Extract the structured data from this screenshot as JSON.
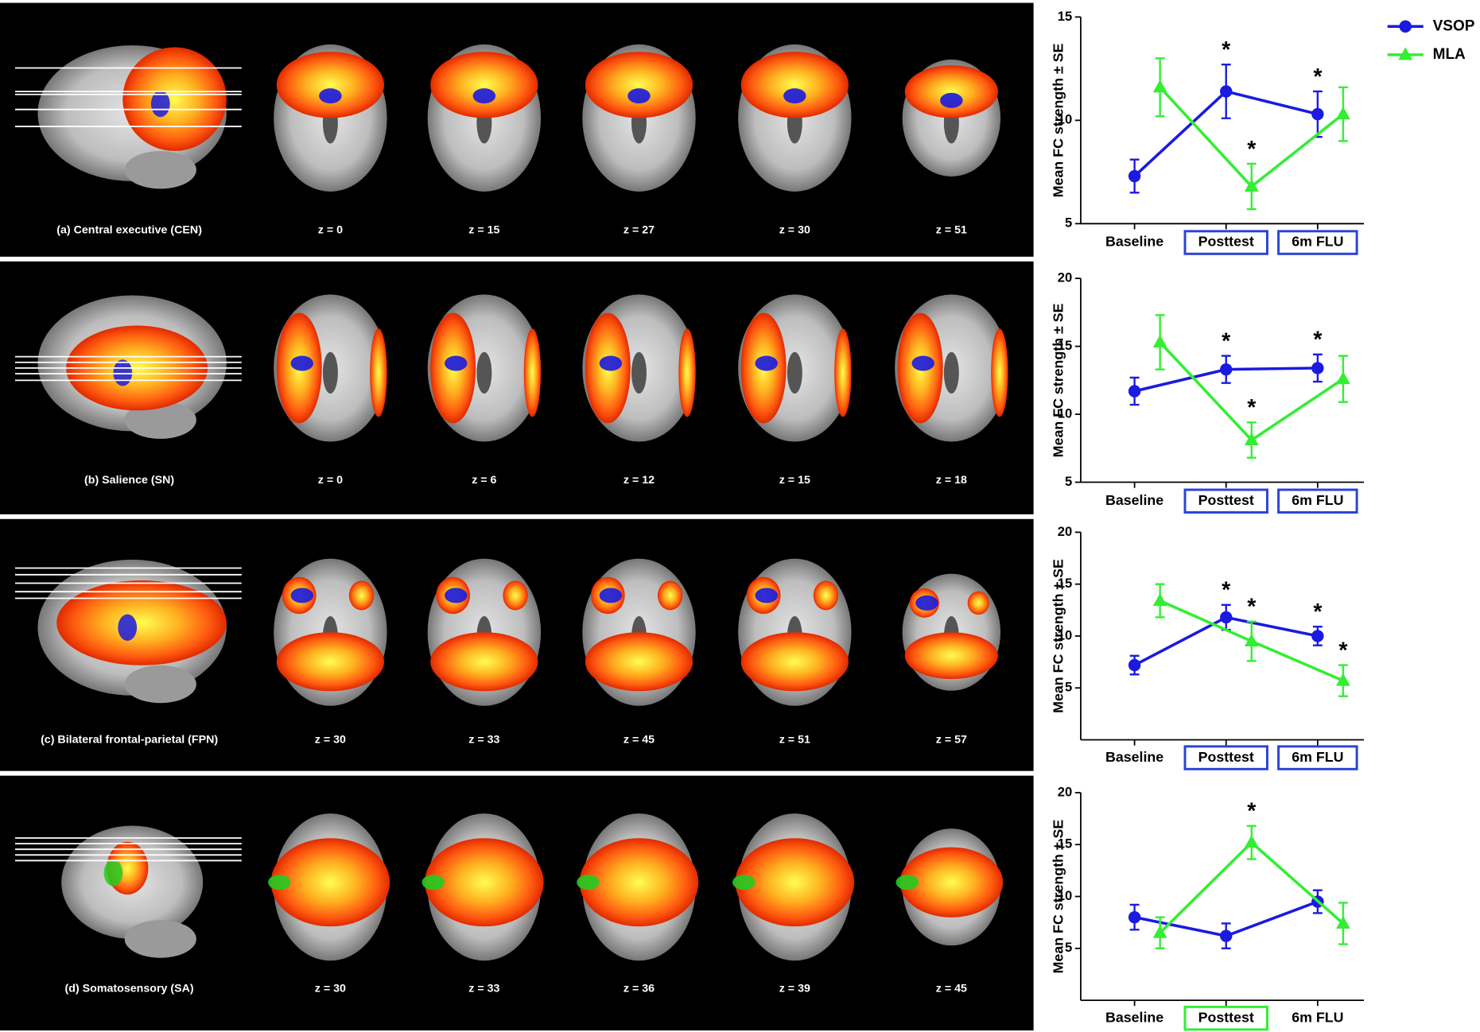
{
  "panels": [
    {
      "label": "(a) Central executive (CEN)",
      "slices": [
        "z = 0",
        "z = 15",
        "z = 27",
        "z = 30",
        "z = 51"
      ]
    },
    {
      "label": "(b) Salience (SN)",
      "slices": [
        "z = 0",
        "z = 6",
        "z = 12",
        "z = 15",
        "z = 18"
      ]
    },
    {
      "label": "(c) Bilateral frontal-parietal (FPN)",
      "slices": [
        "z = 30",
        "z = 33",
        "z = 45",
        "z = 51",
        "z = 57"
      ]
    },
    {
      "label": "(d) Somatosensory (SA)",
      "slices": [
        "z = 30",
        "z = 33",
        "z = 36",
        "z = 39",
        "z = 45"
      ]
    }
  ],
  "chart_data": [
    {
      "type": "line",
      "y_label": "Mean FC strength ± SE",
      "legend": "top-right",
      "categories": [
        "Baseline",
        "Posttest",
        "6m FLU"
      ],
      "category_box_colors": [
        null,
        "#2a44d8",
        "#2a44d8"
      ],
      "ylim": [
        5,
        15
      ],
      "yticks": [
        5,
        10,
        15
      ],
      "series": [
        {
          "name": "VSOP",
          "color": "#1a1ae0",
          "marker": "circle",
          "values": [
            7.3,
            11.4,
            10.3
          ],
          "errors": [
            0.8,
            1.3,
            1.1
          ],
          "annotations": [
            null,
            "*",
            "*"
          ]
        },
        {
          "name": "MLA",
          "color": "#33ee33",
          "marker": "triangle",
          "values": [
            11.6,
            6.8,
            10.3
          ],
          "errors": [
            1.4,
            1.1,
            1.3
          ],
          "annotations": [
            null,
            "*",
            null
          ]
        }
      ]
    },
    {
      "type": "line",
      "y_label": "Mean FC strength ± SE",
      "categories": [
        "Baseline",
        "Posttest",
        "6m FLU"
      ],
      "category_box_colors": [
        null,
        "#2a44d8",
        "#2a44d8"
      ],
      "ylim": [
        5,
        20
      ],
      "yticks": [
        5,
        10,
        15,
        20
      ],
      "series": [
        {
          "name": "VSOP",
          "color": "#1a1ae0",
          "marker": "circle",
          "values": [
            11.7,
            13.3,
            13.4
          ],
          "errors": [
            1.0,
            1.0,
            1.0
          ],
          "annotations": [
            null,
            "*",
            "*"
          ]
        },
        {
          "name": "MLA",
          "color": "#33ee33",
          "marker": "triangle",
          "values": [
            15.3,
            8.1,
            12.6
          ],
          "errors": [
            2.0,
            1.3,
            1.7
          ],
          "annotations": [
            null,
            "*",
            null
          ]
        }
      ]
    },
    {
      "type": "line",
      "y_label": "Mean FC strength ± SE",
      "categories": [
        "Baseline",
        "Posttest",
        "6m FLU"
      ],
      "category_box_colors": [
        null,
        "#2a44d8",
        "#2a44d8"
      ],
      "ylim": [
        0,
        20
      ],
      "yticks": [
        5,
        10,
        15,
        20
      ],
      "series": [
        {
          "name": "VSOP",
          "color": "#1a1ae0",
          "marker": "circle",
          "values": [
            7.2,
            11.8,
            10.0
          ],
          "errors": [
            0.9,
            1.2,
            0.9
          ],
          "annotations": [
            null,
            "*",
            "*"
          ]
        },
        {
          "name": "MLA",
          "color": "#33ee33",
          "marker": "triangle",
          "values": [
            13.4,
            9.5,
            5.7
          ],
          "errors": [
            1.6,
            1.9,
            1.5
          ],
          "annotations": [
            null,
            "*",
            "*"
          ]
        }
      ]
    },
    {
      "type": "line",
      "y_label": "Mean FC strength ± SE",
      "categories": [
        "Baseline",
        "Posttest",
        "6m FLU"
      ],
      "category_box_colors": [
        null,
        "#33ee33",
        null
      ],
      "ylim": [
        0,
        20
      ],
      "yticks": [
        5,
        10,
        15,
        20
      ],
      "series": [
        {
          "name": "VSOP",
          "color": "#1a1ae0",
          "marker": "circle",
          "values": [
            8.0,
            6.2,
            9.5
          ],
          "errors": [
            1.2,
            1.2,
            1.1
          ],
          "annotations": [
            null,
            null,
            null
          ]
        },
        {
          "name": "MLA",
          "color": "#33ee33",
          "marker": "triangle",
          "values": [
            6.5,
            15.2,
            7.4
          ],
          "errors": [
            1.5,
            1.6,
            2.0
          ],
          "annotations": [
            null,
            "*",
            null
          ]
        }
      ]
    }
  ]
}
